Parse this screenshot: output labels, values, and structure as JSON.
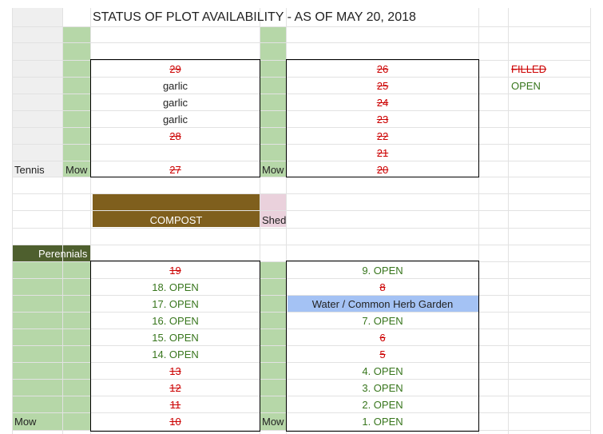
{
  "title": "STATUS OF PLOT AVAILABILITY - AS OF MAY 20, 2018",
  "legend": {
    "filled": "FILLED",
    "open": "OPEN"
  },
  "labels": {
    "tennis": "Tennis",
    "mow_top_left": "Mow",
    "mow_top_mid": "Mow",
    "compost": "COMPOST",
    "shed": "Shed",
    "perennials": "Perennials",
    "mow_bottom_left": "Mow",
    "mow_bottom_mid": "Mow",
    "herb_garden": "Water / Common Herb Garden"
  },
  "top_left_plots": [
    "29",
    "garlic",
    "garlic",
    "garlic",
    "28",
    "",
    "27"
  ],
  "top_right_plots": [
    "26",
    "25",
    "24",
    "23",
    "22",
    "21",
    "20"
  ],
  "bottom_left_plots": [
    "19",
    "18. OPEN",
    "17. OPEN",
    "16. OPEN",
    "15. OPEN",
    "14. OPEN",
    "13",
    "12",
    "11",
    "10"
  ],
  "bottom_right_plots": [
    "9. OPEN",
    "8",
    "",
    "7. OPEN",
    "6",
    "5",
    "4. OPEN",
    "3. OPEN",
    "2. OPEN",
    "1. OPEN"
  ],
  "colors": {
    "open": "#38761d",
    "filled": "#cc0000",
    "mow": "#b6d7a8",
    "compost": "#7f5f1d",
    "shed": "#ead1dc",
    "perennials": "#4e5f2e",
    "herb_garden": "#a4c2f4",
    "tennis": "#efefef"
  }
}
